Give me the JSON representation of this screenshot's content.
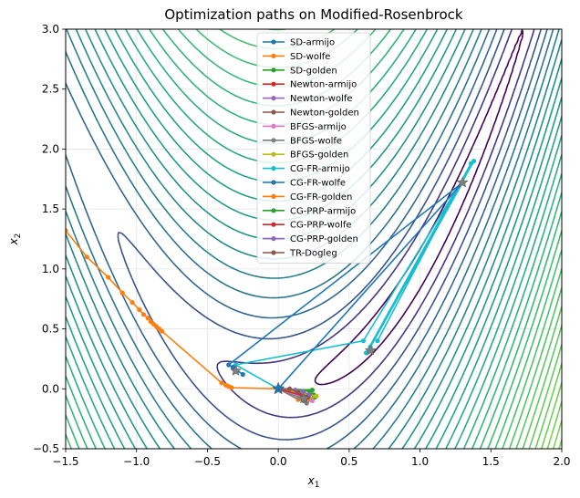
{
  "chart_data": {
    "type": "line",
    "title": "Optimization paths on Modified-Rosenbrock",
    "xlabel": "x",
    "xlabel_sub": "1",
    "ylabel": "x",
    "ylabel_sub": "2",
    "xlim": [
      -1.5,
      2.0
    ],
    "ylim": [
      -0.5,
      3.0
    ],
    "xticks": [
      -1.5,
      -1.0,
      -0.5,
      0.0,
      0.5,
      1.0,
      1.5,
      2.0
    ],
    "xtick_labels": [
      "−1.5",
      "−1.0",
      "−0.5",
      "0.0",
      "0.5",
      "1.0",
      "1.5",
      "2.0"
    ],
    "yticks": [
      -0.5,
      0.0,
      0.5,
      1.0,
      1.5,
      2.0,
      2.5,
      3.0
    ],
    "ytick_labels": [
      "−0.5",
      "0.0",
      "0.5",
      "1.0",
      "1.5",
      "2.0",
      "2.5",
      "3.0"
    ],
    "grid": true,
    "legend_position": "top-center",
    "contour": {
      "function": "modified-rosenbrock",
      "colormap": "viridis"
    },
    "start_point": [
      0.0,
      0.0
    ],
    "stationary_points": [
      [
        1.3,
        1.72
      ],
      [
        0.65,
        0.32
      ],
      [
        -0.3,
        0.15
      ],
      [
        0.18,
        -0.08
      ]
    ],
    "series": [
      {
        "name": "SD-armijo",
        "color": "#1f77b4",
        "points": [
          [
            0.0,
            0.0
          ],
          [
            0.15,
            -0.07
          ],
          [
            0.18,
            -0.1
          ],
          [
            0.2,
            -0.08
          ],
          [
            0.19,
            -0.06
          ],
          [
            0.21,
            -0.09
          ]
        ]
      },
      {
        "name": "SD-wolfe",
        "color": "#ff7f0e",
        "points": [
          [
            0.0,
            0.0
          ],
          [
            0.14,
            -0.09
          ],
          [
            0.2,
            -0.1
          ],
          [
            0.22,
            -0.08
          ],
          [
            0.2,
            -0.11
          ]
        ]
      },
      {
        "name": "SD-golden",
        "color": "#2ca02c",
        "points": [
          [
            0.0,
            0.0
          ],
          [
            0.22,
            -0.02
          ],
          [
            0.25,
            -0.05
          ],
          [
            0.23,
            -0.09
          ],
          [
            0.26,
            -0.07
          ]
        ]
      },
      {
        "name": "Newton-armijo",
        "color": "#d62728",
        "points": [
          [
            0.0,
            0.0
          ],
          [
            0.17,
            -0.06
          ],
          [
            0.2,
            -0.09
          ]
        ]
      },
      {
        "name": "Newton-wolfe",
        "color": "#9467bd",
        "points": [
          [
            0.0,
            0.0
          ],
          [
            0.16,
            -0.05
          ],
          [
            0.19,
            -0.08
          ]
        ]
      },
      {
        "name": "Newton-golden",
        "color": "#8c564b",
        "points": [
          [
            0.0,
            0.0
          ],
          [
            0.18,
            -0.04
          ],
          [
            0.2,
            -0.08
          ]
        ]
      },
      {
        "name": "BFGS-armijo",
        "color": "#e377c2",
        "points": [
          [
            0.0,
            0.0
          ],
          [
            0.24,
            -0.1
          ],
          [
            0.19,
            -0.08
          ]
        ]
      },
      {
        "name": "BFGS-wolfe",
        "color": "#7f7f7f",
        "points": [
          [
            0.0,
            0.0
          ],
          [
            0.2,
            -0.12
          ],
          [
            0.18,
            -0.09
          ]
        ]
      },
      {
        "name": "BFGS-golden",
        "color": "#bcbd22",
        "points": [
          [
            0.0,
            0.0
          ],
          [
            0.27,
            -0.06
          ],
          [
            0.2,
            -0.09
          ]
        ]
      },
      {
        "name": "CG-FR-armijo",
        "color": "#17becf",
        "points": [
          [
            0.0,
            0.0
          ],
          [
            -0.3,
            0.2
          ],
          [
            0.6,
            0.4
          ],
          [
            1.38,
            1.9
          ],
          [
            0.65,
            0.35
          ],
          [
            1.3,
            1.72
          ],
          [
            0.62,
            0.3
          ],
          [
            1.36,
            1.88
          ],
          [
            0.7,
            0.4
          ]
        ]
      },
      {
        "name": "CG-FR-wolfe",
        "color": "#1f77b4",
        "points": [
          [
            0.0,
            0.0
          ],
          [
            1.3,
            1.72
          ],
          [
            -0.35,
            0.2
          ],
          [
            -0.25,
            0.12
          ],
          [
            -0.32,
            0.18
          ]
        ]
      },
      {
        "name": "CG-FR-golden",
        "color": "#ff7f0e",
        "points": [
          [
            -1.5,
            1.32
          ],
          [
            -1.35,
            1.1
          ],
          [
            -1.2,
            0.93
          ],
          [
            -1.1,
            0.8
          ],
          [
            -1.03,
            0.72
          ],
          [
            -0.98,
            0.66
          ],
          [
            -0.95,
            0.62
          ],
          [
            -0.92,
            0.59
          ],
          [
            -0.9,
            0.56
          ],
          [
            -0.88,
            0.54
          ],
          [
            -0.86,
            0.52
          ],
          [
            -0.84,
            0.5
          ],
          [
            -0.82,
            0.48
          ],
          [
            -0.4,
            0.05
          ],
          [
            -0.37,
            0.03
          ],
          [
            -0.35,
            0.02
          ],
          [
            -0.33,
            0.01
          ],
          [
            0.0,
            0.0
          ]
        ]
      },
      {
        "name": "CG-PRP-armijo",
        "color": "#2ca02c",
        "points": [
          [
            0.0,
            0.0
          ],
          [
            0.24,
            -0.01
          ],
          [
            0.21,
            -0.06
          ]
        ]
      },
      {
        "name": "CG-PRP-wolfe",
        "color": "#d62728",
        "points": [
          [
            0.0,
            0.0
          ],
          [
            0.21,
            -0.07
          ],
          [
            0.19,
            -0.09
          ]
        ]
      },
      {
        "name": "CG-PRP-golden",
        "color": "#9467bd",
        "points": [
          [
            0.0,
            0.0
          ],
          [
            0.12,
            -0.01
          ],
          [
            0.17,
            -0.02
          ],
          [
            0.22,
            -0.05
          ]
        ]
      },
      {
        "name": "TR-Dogleg",
        "color": "#8c564b",
        "points": [
          [
            0.0,
            0.0
          ],
          [
            0.08,
            0.0
          ],
          [
            0.14,
            -0.03
          ],
          [
            0.2,
            -0.07
          ]
        ]
      }
    ]
  }
}
